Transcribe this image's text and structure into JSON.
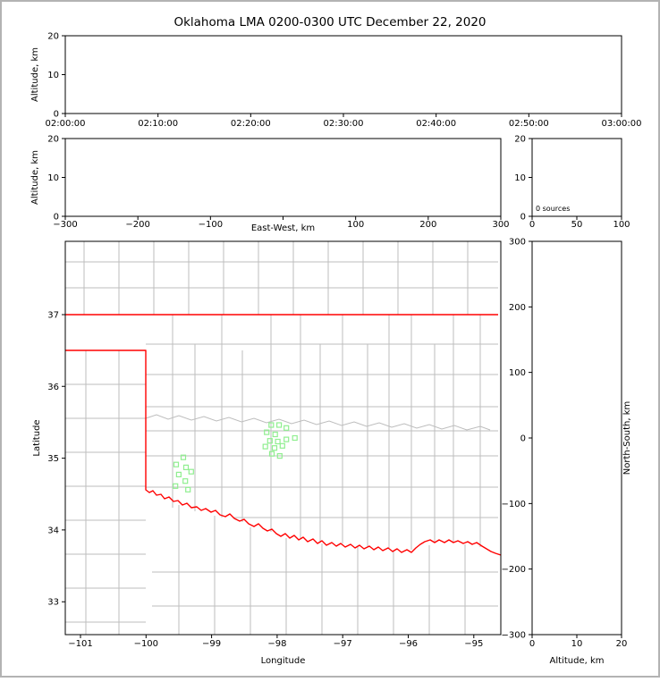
{
  "title": "Oklahoma LMA 0200-0300 UTC December 22, 2020",
  "colors": {
    "state_border": "#ff0000",
    "county_lines": "#bdbdbd",
    "markers": "#90ee90",
    "axis": "#000000",
    "background": "#ffffff",
    "frame": "#b3b3b3"
  },
  "panels": {
    "time_height": {
      "ylabel": "Altitude, km",
      "y_ticks": [
        "20",
        "10",
        "0"
      ],
      "x_ticks": [
        "02:00:00",
        "02:10:00",
        "02:20:00",
        "02:30:00",
        "02:40:00",
        "02:50:00",
        "03:00:00"
      ]
    },
    "ew_height": {
      "ylabel": "Altitude, km",
      "xlabel": "East-West, km",
      "y_ticks": [
        "20",
        "10",
        "0"
      ],
      "x_ticks": [
        "−300",
        "−200",
        "−100",
        "100",
        "200",
        "300"
      ]
    },
    "histogram": {
      "annotation": "0 sources",
      "y_ticks": [
        "20",
        "10",
        "0"
      ],
      "x_ticks": [
        "0",
        "50",
        "100"
      ]
    },
    "map": {
      "ylabel": "Latitude",
      "xlabel": "Longitude",
      "y_ticks": [
        "37",
        "36",
        "35",
        "34",
        "33"
      ],
      "x_ticks": [
        "−101",
        "−100",
        "−99",
        "−98",
        "−97",
        "−96",
        "−95"
      ]
    },
    "ns_height": {
      "ylabel": "North-South, km",
      "xlabel": "Altitude, km",
      "y_ticks": [
        "300",
        "200",
        "100",
        "0",
        "−100",
        "−200",
        "−300"
      ],
      "x_ticks": [
        "0",
        "10",
        "20"
      ]
    }
  },
  "chart_data": [
    {
      "type": "scatter",
      "panel": "time-height",
      "title": "Oklahoma LMA 0200-0300 UTC December 22, 2020",
      "ylabel": "Altitude, km",
      "x_tick_labels": [
        "02:00:00",
        "02:10:00",
        "02:20:00",
        "02:30:00",
        "02:40:00",
        "02:50:00",
        "03:00:00"
      ],
      "ylim": [
        0,
        20
      ],
      "points": []
    },
    {
      "type": "scatter",
      "panel": "east-west-height",
      "xlabel": "East-West, km",
      "ylabel": "Altitude, km",
      "xlim": [
        -300,
        300
      ],
      "ylim": [
        0,
        20
      ],
      "points": []
    },
    {
      "type": "histogram",
      "panel": "altitude-histogram",
      "annotation": "0 sources",
      "xlim": [
        0,
        100
      ],
      "ylim": [
        0,
        20
      ],
      "values": []
    },
    {
      "type": "scatter",
      "panel": "map",
      "xlabel": "Longitude",
      "ylabel": "Latitude",
      "xlim": [
        -101.23,
        -94.59
      ],
      "ylim": [
        32.54,
        38.02
      ],
      "series": [
        {
          "name": "lma-station-markers",
          "marker": "open-square",
          "color": "#90ee90",
          "points": [
            [
              -98.09,
              35.46
            ],
            [
              -97.97,
              35.46
            ],
            [
              -97.86,
              35.42
            ],
            [
              -98.16,
              35.36
            ],
            [
              -98.03,
              35.33
            ],
            [
              -97.73,
              35.28
            ],
            [
              -98.11,
              35.24
            ],
            [
              -97.99,
              35.23
            ],
            [
              -97.86,
              35.26
            ],
            [
              -98.18,
              35.16
            ],
            [
              -98.04,
              35.14
            ],
            [
              -97.92,
              35.17
            ],
            [
              -98.08,
              35.06
            ],
            [
              -97.96,
              35.03
            ],
            [
              -99.43,
              35.01
            ],
            [
              -99.54,
              34.91
            ],
            [
              -99.39,
              34.87
            ],
            [
              -99.31,
              34.81
            ],
            [
              -99.5,
              34.77
            ],
            [
              -99.4,
              34.68
            ],
            [
              -99.55,
              34.61
            ],
            [
              -99.36,
              34.56
            ]
          ]
        }
      ]
    },
    {
      "type": "scatter",
      "panel": "north-south-height",
      "xlabel": "Altitude, km",
      "ylabel": "North-South, km",
      "xlim": [
        0,
        20
      ],
      "ylim": [
        -300,
        300
      ],
      "points": []
    }
  ]
}
